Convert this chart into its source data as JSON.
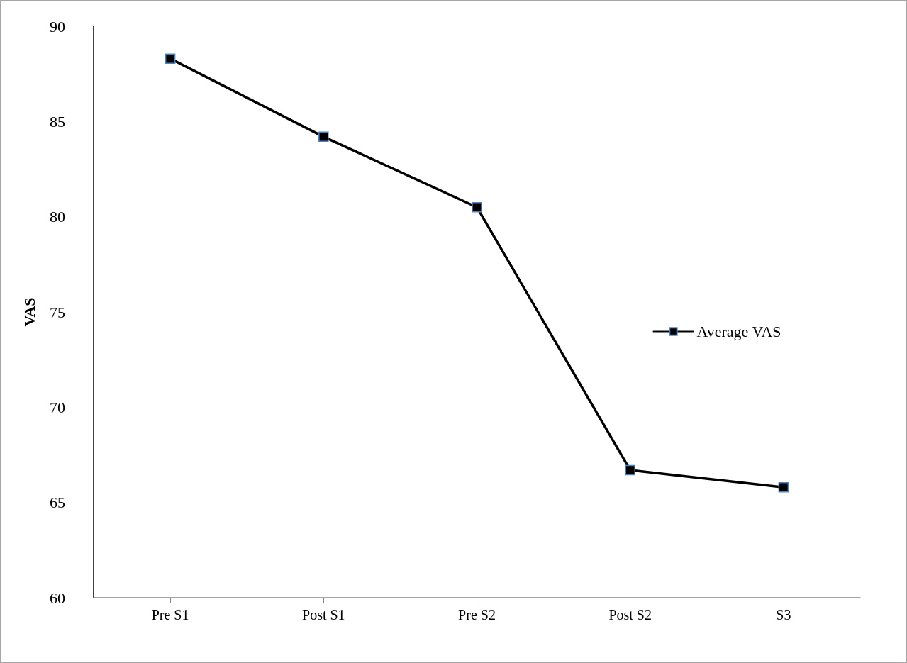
{
  "chart_data": {
    "type": "line",
    "ylabel": "VAS",
    "categories": [
      "Pre S1",
      "Post S1",
      "Pre S2",
      "Post S2",
      "S3"
    ],
    "series": [
      {
        "name": "Average VAS",
        "color": "#000000",
        "values": [
          88.3,
          84.2,
          80.5,
          66.7,
          65.8
        ]
      }
    ],
    "ylim": [
      60,
      90
    ],
    "yticks": [
      60,
      65,
      70,
      75,
      80,
      85,
      90
    ],
    "grid": false,
    "legend": "right",
    "marker": "square",
    "line_style": "solid"
  }
}
